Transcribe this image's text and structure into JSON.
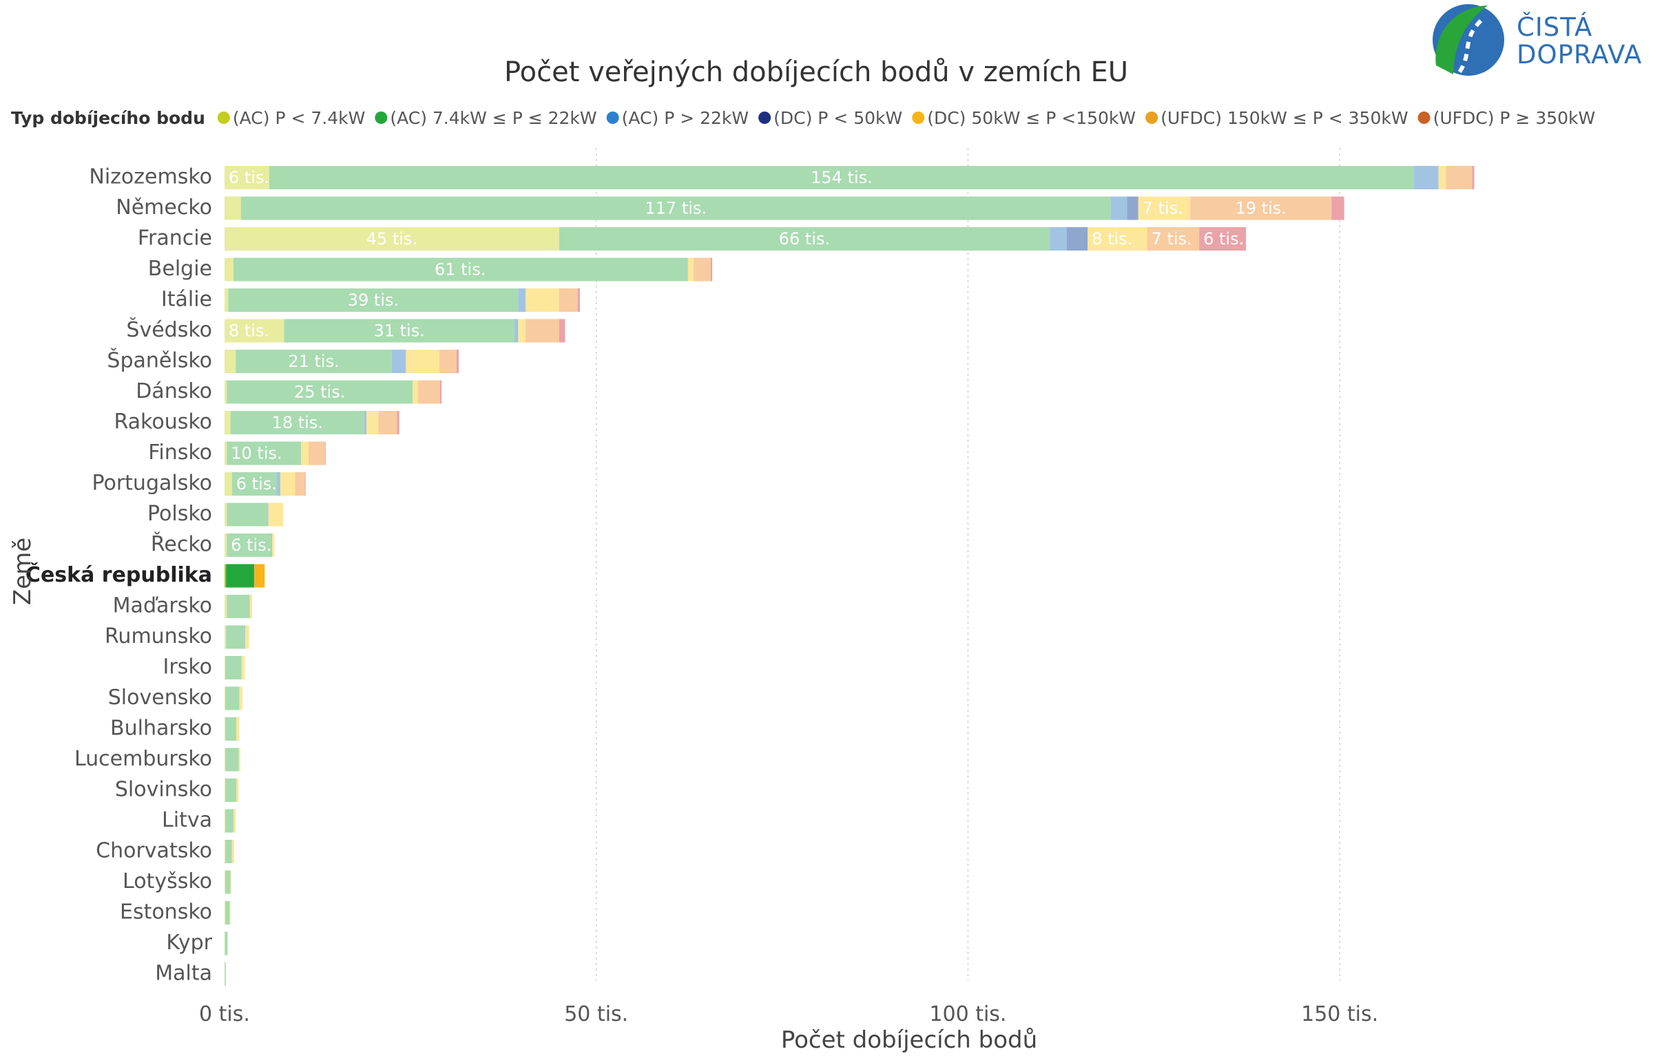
{
  "logo": {
    "line1": "ČISTÁ",
    "line2": "DOPRAVA",
    "colors": {
      "green": "#2aa53a",
      "blue": "#2e6fb5"
    }
  },
  "chart_data": {
    "type": "bar",
    "orientation": "horizontal",
    "stacked": true,
    "title": "Počet veřejných dobíjecích bodů v zemích EU",
    "legend_title": "Typ dobíjecího bodu",
    "legend_position": "top",
    "xlabel": "Počet dobíjecích bodů",
    "ylabel": "Země",
    "xlim": [
      0,
      175000
    ],
    "xticks": [
      {
        "value": 0,
        "label": "0 tis."
      },
      {
        "value": 50000,
        "label": "50 tis."
      },
      {
        "value": 100000,
        "label": "100 tis."
      },
      {
        "value": 150000,
        "label": "150 tis."
      }
    ],
    "grid": "vertical-dotted",
    "highlight_category": "Česká republika",
    "categories": [
      "Nizozemsko",
      "Německo",
      "Francie",
      "Belgie",
      "Itálie",
      "Švédsko",
      "Španělsko",
      "Dánsko",
      "Rakousko",
      "Finsko",
      "Portugalsko",
      "Polsko",
      "Řecko",
      "Česká republika",
      "Maďarsko",
      "Rumunsko",
      "Irsko",
      "Slovensko",
      "Bulharsko",
      "Lucembursko",
      "Slovinsko",
      "Litva",
      "Chorvatsko",
      "Lotyšsko",
      "Estonsko",
      "Kypr",
      "Malta"
    ],
    "series": [
      {
        "name": "(AC) P < 7.4kW",
        "color": "#e8ec9f",
        "highlight_color": "#b8c90a",
        "marker": "#c2cf1e",
        "values": [
          6000,
          2200,
          45000,
          1200,
          500,
          8000,
          1500,
          300,
          800,
          300,
          1000,
          300,
          300,
          200,
          300,
          200,
          100,
          100,
          100,
          100,
          100,
          100,
          100,
          100,
          100,
          50,
          20
        ],
        "labels": [
          "6 tis.",
          "",
          "45 tis.",
          "",
          "",
          "8 tis.",
          "",
          "",
          "",
          "",
          "",
          "",
          "",
          "",
          "",
          "",
          "",
          "",
          "",
          "",
          "",
          "",
          "",
          "",
          "",
          "",
          ""
        ]
      },
      {
        "name": "(AC) 7.4kW ≤ P ≤ 22kW",
        "color": "#a8dbb0",
        "highlight_color": "#22a83a",
        "marker": "#22a83a",
        "values": [
          154000,
          117000,
          66000,
          61000,
          39000,
          31000,
          21000,
          25000,
          18000,
          10000,
          6000,
          5500,
          6000,
          3700,
          3000,
          2500,
          2200,
          1900,
          1500,
          1800,
          1500,
          1100,
          900,
          700,
          600,
          350,
          150
        ],
        "labels": [
          "154 tis.",
          "117 tis.",
          "66 tis.",
          "61 tis.",
          "39 tis.",
          "31 tis.",
          "21 tis.",
          "25 tis.",
          "18 tis.",
          "10 tis.",
          "6 tis.",
          "",
          "6 tis.",
          "",
          "",
          "",
          "",
          "",
          "",
          "",
          "",
          "",
          "",
          "",
          "",
          "",
          ""
        ]
      },
      {
        "name": "(AC) P > 22kW",
        "color": "#a2c4e3",
        "highlight_color": "#2e7fd1",
        "marker": "#2e7fd1",
        "values": [
          3300,
          2200,
          2300,
          100,
          1000,
          500,
          1900,
          0,
          300,
          0,
          500,
          100,
          100,
          100,
          100,
          100,
          0,
          0,
          0,
          0,
          0,
          0,
          0,
          0,
          0,
          0,
          0
        ],
        "labels": [
          "",
          "",
          "",
          "",
          "",
          "",
          "",
          "",
          "",
          "",
          "",
          "",
          "",
          "",
          "",
          "",
          "",
          "",
          "",
          "",
          "",
          "",
          "",
          "",
          "",
          "",
          ""
        ]
      },
      {
        "name": "(DC) P < 50kW",
        "color": "#8fa7cf",
        "highlight_color": "#1f2f80",
        "marker": "#1f2f80",
        "values": [
          0,
          1500,
          2800,
          0,
          0,
          0,
          0,
          0,
          0,
          0,
          0,
          0,
          0,
          0,
          0,
          0,
          0,
          0,
          0,
          0,
          0,
          0,
          0,
          0,
          0,
          0,
          0
        ],
        "labels": [
          "",
          "",
          "",
          "",
          "",
          "",
          "",
          "",
          "",
          "",
          "",
          "",
          "",
          "",
          "",
          "",
          "",
          "",
          "",
          "",
          "",
          "",
          "",
          "",
          "",
          "",
          ""
        ]
      },
      {
        "name": "(DC) 50kW ≤ P <150kW",
        "color": "#fde79a",
        "highlight_color": "#f7b416",
        "marker": "#f7b416",
        "values": [
          1000,
          7000,
          8000,
          800,
          4500,
          1000,
          4500,
          700,
          1600,
          1000,
          2000,
          2000,
          300,
          1400,
          300,
          500,
          400,
          400,
          400,
          200,
          300,
          300,
          300,
          100,
          100,
          50,
          0
        ],
        "labels": [
          "",
          "7 tis.",
          "8 tis.",
          "",
          "",
          "",
          "",
          "",
          "",
          "",
          "",
          "",
          "",
          "",
          "",
          "",
          "",
          "",
          "",
          "",
          "",
          "",
          "",
          "",
          "",
          "",
          ""
        ]
      },
      {
        "name": "(UFDC) 150kW ≤ P < 350kW",
        "color": "#f9cba0",
        "highlight_color": "#e08a10",
        "marker": "#e8a020",
        "values": [
          3500,
          19000,
          7000,
          2300,
          2500,
          4500,
          2300,
          3000,
          2500,
          2200,
          1300,
          0,
          0,
          0,
          0,
          0,
          0,
          0,
          0,
          0,
          0,
          0,
          0,
          0,
          0,
          0,
          0
        ],
        "labels": [
          "",
          "19 tis.",
          "7 tis.",
          "",
          "",
          "",
          "",
          "",
          "",
          "",
          "",
          "",
          "",
          "",
          "",
          "",
          "",
          "",
          "",
          "",
          "",
          "",
          "",
          "",
          "",
          "",
          ""
        ]
      },
      {
        "name": "(UFDC) P ≥ 350kW",
        "color": "#eaa3a8",
        "highlight_color": "#c8622a",
        "marker": "#c8622a",
        "values": [
          300,
          1700,
          6300,
          200,
          300,
          800,
          300,
          200,
          300,
          100,
          100,
          0,
          0,
          0,
          0,
          0,
          0,
          0,
          0,
          0,
          0,
          0,
          0,
          0,
          0,
          0,
          0
        ],
        "labels": [
          "",
          "",
          "6 tis.",
          "",
          "",
          "",
          "",
          "",
          "",
          "",
          "",
          "",
          "",
          "",
          "",
          "",
          "",
          "",
          "",
          "",
          "",
          "",
          "",
          "",
          "",
          "",
          ""
        ]
      }
    ]
  }
}
